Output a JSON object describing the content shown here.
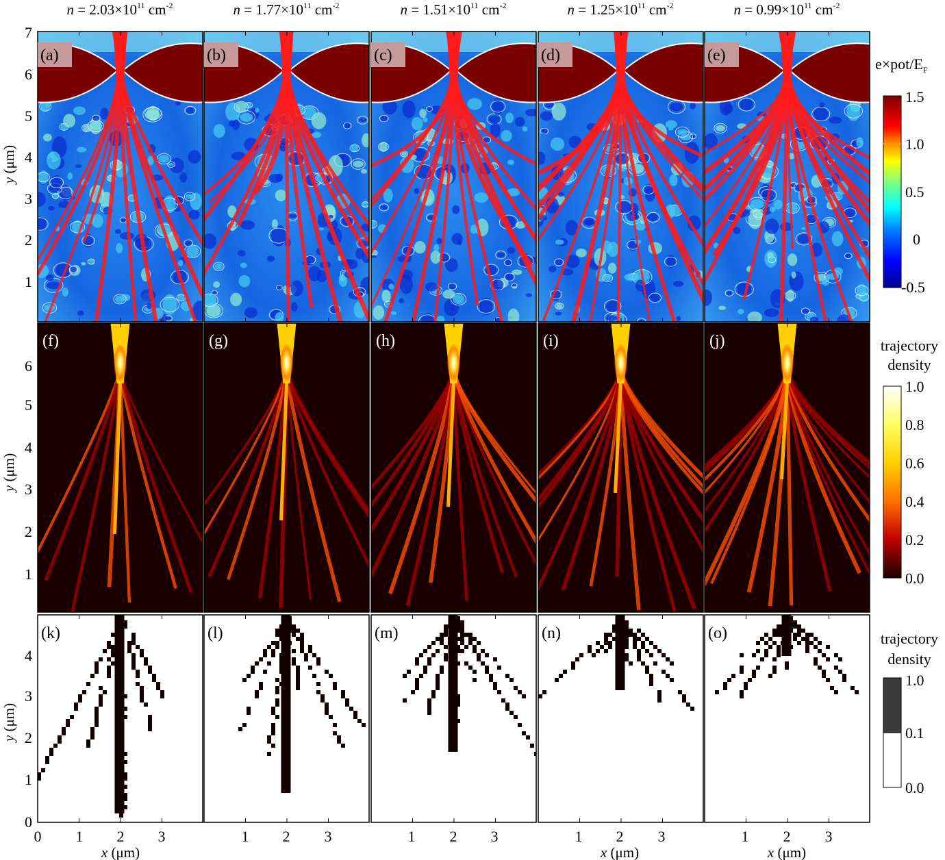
{
  "density_labels": [
    {
      "pre": "n",
      "mid": " = 2.03×10",
      "sup1": "11",
      "post": " cm",
      "sup2": "-2"
    },
    {
      "pre": "n",
      "mid": " = 1.77×10",
      "sup1": "11",
      "post": " cm",
      "sup2": "-2"
    },
    {
      "pre": "n",
      "mid": " = 1.51×10",
      "sup1": "11",
      "post": " cm",
      "sup2": "-2"
    },
    {
      "pre": "n",
      "mid": " = 1.25×10",
      "sup1": "11",
      "post": " cm",
      "sup2": "-2"
    },
    {
      "pre": "n",
      "mid": " = 0.99×10",
      "sup1": "11",
      "post": " cm",
      "sup2": "-2"
    }
  ],
  "panel_letters": {
    "row1": [
      "(a)",
      "(b)",
      "(c)",
      "(d)",
      "(e)"
    ],
    "row2": [
      "(f)",
      "(g)",
      "(h)",
      "(i)",
      "(j)"
    ],
    "row3": [
      "(k)",
      "(l)",
      "(m)",
      "(n)",
      "(o)"
    ]
  },
  "axes": {
    "ylabel_var": "y",
    "ylabel_unit": " (μm)",
    "xlabel_var": "x",
    "xlabel_unit": " (μm)",
    "row1_yticks": [
      "1",
      "2",
      "3",
      "4",
      "5",
      "6",
      "7"
    ],
    "row2_yticks": [
      "1",
      "2",
      "3",
      "4",
      "5",
      "6"
    ],
    "row3_yticks": [
      "0",
      "1",
      "2",
      "3",
      "4"
    ],
    "xticks_first": [
      "0",
      "1",
      "2",
      "3"
    ],
    "xticks_other": [
      "1",
      "2",
      "3"
    ]
  },
  "colorbars": {
    "potential": {
      "title_main": "e×pot/E",
      "title_sub": "F",
      "ticks": [
        "1.5",
        "1.0",
        "0.5",
        "0",
        "-0.5"
      ]
    },
    "density": {
      "title_line1": "trajectory",
      "title_line2": "density",
      "ticks": [
        "1.0",
        "0.8",
        "0.6",
        "0.4",
        "0.2",
        "0.0"
      ]
    },
    "threshold": {
      "title_line1": "trajectory",
      "title_line2": "density",
      "ticks": [
        "1.0",
        "0.1",
        "0.0"
      ]
    }
  },
  "colors": {
    "potential_high": "#7a0000",
    "trajectory_red": "#ff1a1a",
    "density_background": "#1a0000",
    "label_box": "#c49a9a"
  }
}
